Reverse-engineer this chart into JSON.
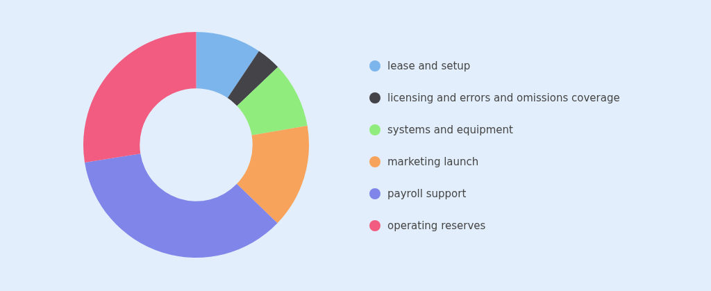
{
  "chart_data": {
    "type": "donut",
    "categories": [
      "lease and setup",
      "licensing and errors and omissions coverage",
      "systems and equipment",
      "marketing launch",
      "payroll support",
      "operating reserves"
    ],
    "values": [
      9.4,
      3.5,
      9.4,
      14.9,
      35.3,
      27.5
    ],
    "colors": [
      "#7cb5ec",
      "#434348",
      "#90ed7d",
      "#f7a35c",
      "#8085e9",
      "#f15c80"
    ],
    "legend": "right"
  }
}
